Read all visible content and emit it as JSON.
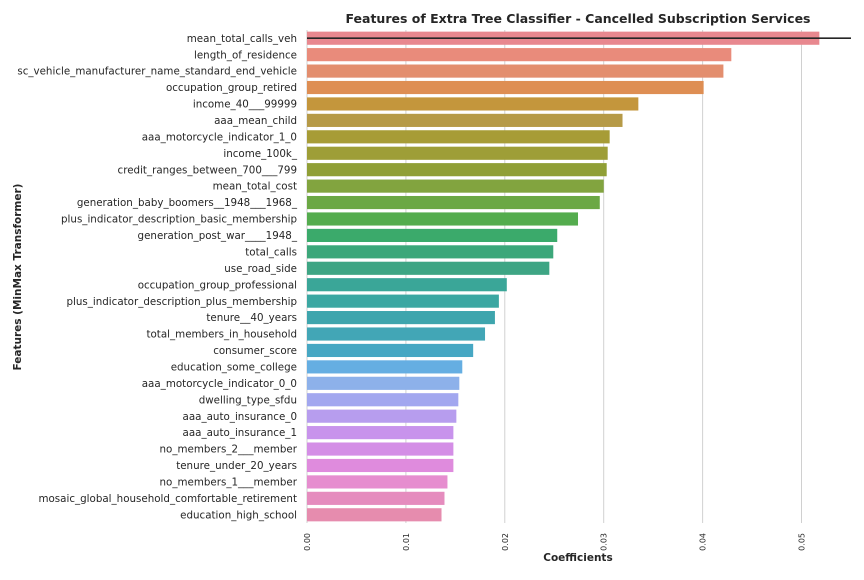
{
  "chart_data": {
    "type": "bar",
    "orientation": "horizontal",
    "title": "Features of Extra Tree Classifier - Cancelled Subscription Services",
    "xlabel": "Coefficients",
    "ylabel": "Features (MinMax Transformer)",
    "xlim": [
      0.0,
      0.055
    ],
    "xticks": [
      "0.00",
      "0.01",
      "0.02",
      "0.03",
      "0.04",
      "0.05"
    ],
    "xtick_values": [
      0.0,
      0.01,
      0.02,
      0.03,
      0.04,
      0.05
    ],
    "grid": true,
    "reference_line_y": "mean_total_calls_veh",
    "categories": [
      "mean_total_calls_veh",
      "length_of_residence",
      "sc_vehicle_manufacturer_name_standard_end_vehicle",
      "occupation_group_retired",
      "income_40___99999",
      "aaa_mean_child",
      "aaa_motorcycle_indicator_1_0",
      "income_100k_",
      "credit_ranges_between_700___799",
      "mean_total_cost",
      "generation_baby_boomers__1948___1968_",
      "plus_indicator_description_basic_membership",
      "generation_post_war____1948_",
      "total_calls",
      "use_road_side",
      "occupation_group_professional",
      "plus_indicator_description_plus_membership",
      "tenure__40_years",
      "total_members_in_household",
      "consumer_score",
      "education_some_college",
      "aaa_motorcycle_indicator_0_0",
      "dwelling_type_sfdu",
      "aaa_auto_insurance_0",
      "aaa_auto_insurance_1",
      "no_members_2___member",
      "tenure_under_20_years",
      "no_members_1___member",
      "mosaic_global_household_comfortable_retirement",
      "education_high_school"
    ],
    "values": [
      0.0518,
      0.0429,
      0.0421,
      0.0401,
      0.0335,
      0.0319,
      0.0306,
      0.0304,
      0.0303,
      0.03,
      0.0296,
      0.0274,
      0.0253,
      0.0249,
      0.0245,
      0.0202,
      0.0194,
      0.019,
      0.018,
      0.0168,
      0.0157,
      0.0154,
      0.0153,
      0.0151,
      0.0148,
      0.0148,
      0.0148,
      0.0142,
      0.0139,
      0.0136
    ],
    "colors": [
      "#e8888f",
      "#e98b7b",
      "#e38e6e",
      "#de8e53",
      "#c4963c",
      "#b69a47",
      "#a79c36",
      "#9e9e37",
      "#909f36",
      "#82a43f",
      "#6ba844",
      "#54ac4e",
      "#3baa6b",
      "#3ca77a",
      "#3ea584",
      "#3aa698",
      "#3ba7a2",
      "#3ea5ad",
      "#42a6b6",
      "#46a7c3",
      "#65aee2",
      "#8db1ea",
      "#a2a7ef",
      "#b79dee",
      "#c893ec",
      "#d48ee6",
      "#df8bdd",
      "#e68dcf",
      "#e58cbe",
      "#e68cae"
    ]
  }
}
